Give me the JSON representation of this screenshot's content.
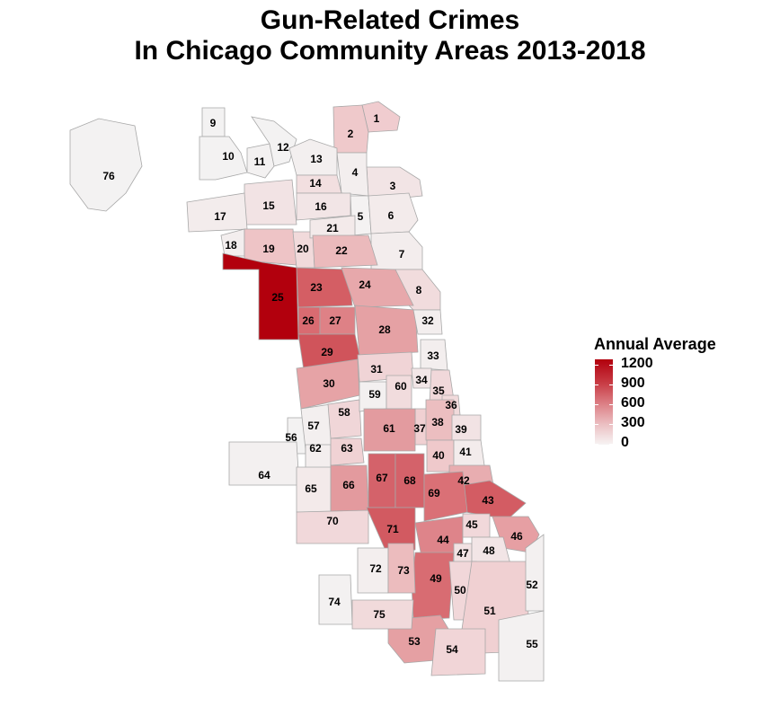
{
  "title_line1": "Gun-Related Crimes",
  "title_line2": "In Chicago Community Areas 2013-2018",
  "legend": {
    "title": "Annual Average",
    "ticks": [
      "1200",
      "900",
      "600",
      "300",
      "0"
    ],
    "colors": {
      "high": "#b2000d",
      "low": "#f7f4f4"
    }
  },
  "areas": [
    {
      "id": "1",
      "fill": "#f0cccf"
    },
    {
      "id": "2",
      "fill": "#efc9cb"
    },
    {
      "id": "3",
      "fill": "#f2e4e5"
    },
    {
      "id": "4",
      "fill": "#f3eeee"
    },
    {
      "id": "5",
      "fill": "#f4f2f2"
    },
    {
      "id": "6",
      "fill": "#f3ebeb"
    },
    {
      "id": "7",
      "fill": "#f3eded"
    },
    {
      "id": "8",
      "fill": "#f1dcdd"
    },
    {
      "id": "9",
      "fill": "#f3f2f2"
    },
    {
      "id": "10",
      "fill": "#f3f2f2"
    },
    {
      "id": "11",
      "fill": "#f3f1f1"
    },
    {
      "id": "12",
      "fill": "#f3f2f2"
    },
    {
      "id": "13",
      "fill": "#f3efef"
    },
    {
      "id": "14",
      "fill": "#f2dfe0"
    },
    {
      "id": "15",
      "fill": "#f2e3e4"
    },
    {
      "id": "16",
      "fill": "#f2e5e6"
    },
    {
      "id": "17",
      "fill": "#f3ecec"
    },
    {
      "id": "18",
      "fill": "#f3eeee"
    },
    {
      "id": "19",
      "fill": "#eec4c6"
    },
    {
      "id": "20",
      "fill": "#f1dadb"
    },
    {
      "id": "21",
      "fill": "#f3eaea"
    },
    {
      "id": "22",
      "fill": "#ebbabc"
    },
    {
      "id": "23",
      "fill": "#d45e64"
    },
    {
      "id": "24",
      "fill": "#e7a8ab"
    },
    {
      "id": "25",
      "fill": "#b2000d"
    },
    {
      "id": "26",
      "fill": "#d96b71"
    },
    {
      "id": "27",
      "fill": "#de8186"
    },
    {
      "id": "28",
      "fill": "#e5a1a4"
    },
    {
      "id": "29",
      "fill": "#d0545b"
    },
    {
      "id": "30",
      "fill": "#e6a3a6"
    },
    {
      "id": "31",
      "fill": "#f0d4d6"
    },
    {
      "id": "32",
      "fill": "#f3eeee"
    },
    {
      "id": "33",
      "fill": "#f3eeee"
    },
    {
      "id": "34",
      "fill": "#f2e6e7"
    },
    {
      "id": "35",
      "fill": "#f1d8da"
    },
    {
      "id": "36",
      "fill": "#f1dadb"
    },
    {
      "id": "37",
      "fill": "#f0d0d2"
    },
    {
      "id": "38",
      "fill": "#ecbec0"
    },
    {
      "id": "39",
      "fill": "#f2e3e4"
    },
    {
      "id": "40",
      "fill": "#efc9cb"
    },
    {
      "id": "41",
      "fill": "#f3ecec"
    },
    {
      "id": "42",
      "fill": "#e8adb0"
    },
    {
      "id": "43",
      "fill": "#d35c63"
    },
    {
      "id": "44",
      "fill": "#de848a"
    },
    {
      "id": "45",
      "fill": "#f1d8da"
    },
    {
      "id": "46",
      "fill": "#e69fa3"
    },
    {
      "id": "47",
      "fill": "#f2e2e3"
    },
    {
      "id": "48",
      "fill": "#f2e5e6"
    },
    {
      "id": "49",
      "fill": "#d86c72"
    },
    {
      "id": "50",
      "fill": "#f1d7d9"
    },
    {
      "id": "51",
      "fill": "#f0d0d2"
    },
    {
      "id": "52",
      "fill": "#f3f0f0"
    },
    {
      "id": "53",
      "fill": "#e5a0a3"
    },
    {
      "id": "54",
      "fill": "#f1d5d7"
    },
    {
      "id": "55",
      "fill": "#f3f1f1"
    },
    {
      "id": "56",
      "fill": "#f3f2f2"
    },
    {
      "id": "57",
      "fill": "#f3efef"
    },
    {
      "id": "58",
      "fill": "#f0d6d8"
    },
    {
      "id": "59",
      "fill": "#f3f0f0"
    },
    {
      "id": "60",
      "fill": "#f1dcdd"
    },
    {
      "id": "61",
      "fill": "#e39b9f"
    },
    {
      "id": "62",
      "fill": "#f3eeee"
    },
    {
      "id": "63",
      "fill": "#f0d2d4"
    },
    {
      "id": "64",
      "fill": "#f3f0f0"
    },
    {
      "id": "65",
      "fill": "#f3eaea"
    },
    {
      "id": "66",
      "fill": "#e39a9e"
    },
    {
      "id": "67",
      "fill": "#d4626a"
    },
    {
      "id": "68",
      "fill": "#d4626a"
    },
    {
      "id": "69",
      "fill": "#da7076"
    },
    {
      "id": "70",
      "fill": "#f1d8da"
    },
    {
      "id": "71",
      "fill": "#d25a61"
    },
    {
      "id": "72",
      "fill": "#f3eeee"
    },
    {
      "id": "73",
      "fill": "#ecbcbe"
    },
    {
      "id": "74",
      "fill": "#f3f1f1"
    },
    {
      "id": "75",
      "fill": "#f1dadb"
    },
    {
      "id": "76",
      "fill": "#f3f2f2"
    }
  ]
}
